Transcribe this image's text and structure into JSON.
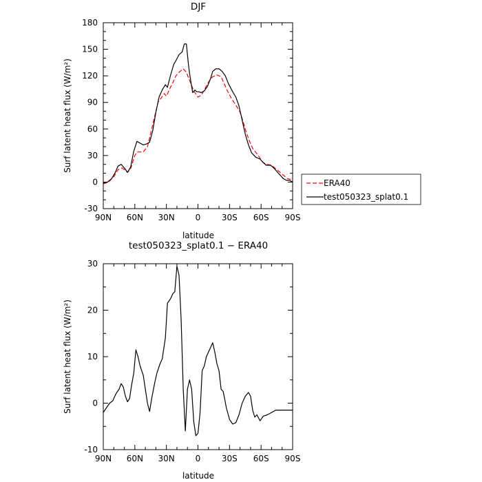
{
  "chart_data": [
    {
      "type": "line",
      "title": "DJF",
      "xlabel": "latitude",
      "ylabel": "Surf latent heat flux (W/m²)",
      "ylim": [
        -30,
        180
      ],
      "xlim": [
        90,
        -90
      ],
      "xticks": [
        90,
        60,
        30,
        0,
        -30,
        -60,
        -90
      ],
      "xtick_labels": [
        "90N",
        "60N",
        "30N",
        "0",
        "30S",
        "60S",
        "90S"
      ],
      "yticks": [
        -30,
        0,
        30,
        60,
        90,
        120,
        150,
        180
      ],
      "ytick_labels": [
        "-30",
        "0",
        "30",
        "60",
        "90",
        "120",
        "150",
        "180"
      ],
      "grid": false,
      "legend_position": "right",
      "series": [
        {
          "name": "ERA40",
          "color": "#ff0000",
          "dash": "dashed",
          "points": [
            [
              90,
              -2
            ],
            [
              85,
              0
            ],
            [
              80,
              6
            ],
            [
              76,
              14
            ],
            [
              72,
              16
            ],
            [
              70,
              14
            ],
            [
              67,
              11
            ],
            [
              64,
              15
            ],
            [
              60,
              30
            ],
            [
              58,
              34
            ],
            [
              55,
              34
            ],
            [
              52,
              34
            ],
            [
              48,
              40
            ],
            [
              45,
              55
            ],
            [
              41,
              75
            ],
            [
              38,
              90
            ],
            [
              35,
              95
            ],
            [
              32,
              100
            ],
            [
              30,
              97
            ],
            [
              27,
              105
            ],
            [
              24,
              112
            ],
            [
              21,
              120
            ],
            [
              18,
              124
            ],
            [
              14,
              128
            ],
            [
              11,
              124
            ],
            [
              8,
              115
            ],
            [
              4,
              103
            ],
            [
              0,
              96
            ],
            [
              -3,
              98
            ],
            [
              -6,
              104
            ],
            [
              -10,
              113
            ],
            [
              -14,
              119
            ],
            [
              -18,
              121
            ],
            [
              -22,
              119
            ],
            [
              -25,
              111
            ],
            [
              -28,
              103
            ],
            [
              -32,
              94
            ],
            [
              -36,
              87
            ],
            [
              -40,
              79
            ],
            [
              -43,
              68
            ],
            [
              -46,
              56
            ],
            [
              -49,
              46
            ],
            [
              -52,
              38
            ],
            [
              -56,
              32
            ],
            [
              -59,
              27
            ],
            [
              -62,
              22
            ],
            [
              -66,
              20
            ],
            [
              -70,
              19
            ],
            [
              -74,
              15
            ],
            [
              -78,
              11
            ],
            [
              -82,
              7
            ],
            [
              -85,
              4
            ],
            [
              -88,
              3
            ],
            [
              -90,
              1
            ]
          ]
        },
        {
          "name": "test050323_splat0.1",
          "color": "#000000",
          "dash": "solid",
          "points": [
            [
              90,
              -1
            ],
            [
              86,
              0
            ],
            [
              82,
              4
            ],
            [
              79,
              10
            ],
            [
              76,
              18
            ],
            [
              73,
              20
            ],
            [
              70,
              16
            ],
            [
              67,
              11
            ],
            [
              64,
              17
            ],
            [
              61,
              35
            ],
            [
              58,
              46
            ],
            [
              55,
              44
            ],
            [
              52,
              42
            ],
            [
              49,
              43
            ],
            [
              46,
              45
            ],
            [
              43,
              58
            ],
            [
              40,
              79
            ],
            [
              37,
              96
            ],
            [
              34,
              104
            ],
            [
              31,
              110
            ],
            [
              29,
              107
            ],
            [
              26,
              121
            ],
            [
              23,
              133
            ],
            [
              21,
              137
            ],
            [
              18,
              144
            ],
            [
              15,
              147
            ],
            [
              13,
              156
            ],
            [
              11,
              156
            ],
            [
              9,
              132
            ],
            [
              7,
              115
            ],
            [
              5,
              101
            ],
            [
              3,
              104
            ],
            [
              1,
              102
            ],
            [
              -1,
              102
            ],
            [
              -3,
              101
            ],
            [
              -6,
              103
            ],
            [
              -9,
              108
            ],
            [
              -12,
              117
            ],
            [
              -14,
              125
            ],
            [
              -17,
              128
            ],
            [
              -20,
              128
            ],
            [
              -23,
              125
            ],
            [
              -26,
              120
            ],
            [
              -29,
              111
            ],
            [
              -33,
              102
            ],
            [
              -36,
              96
            ],
            [
              -39,
              86
            ],
            [
              -42,
              70
            ],
            [
              -45,
              54
            ],
            [
              -48,
              42
            ],
            [
              -51,
              33
            ],
            [
              -55,
              28
            ],
            [
              -59,
              26
            ],
            [
              -62,
              22
            ],
            [
              -65,
              19
            ],
            [
              -69,
              19
            ],
            [
              -72,
              16
            ],
            [
              -75,
              12
            ],
            [
              -78,
              8
            ],
            [
              -81,
              4
            ],
            [
              -84,
              2
            ],
            [
              -87,
              2
            ],
            [
              -90,
              0
            ]
          ]
        }
      ],
      "legend": [
        "ERA40",
        "test050323_splat0.1"
      ]
    },
    {
      "type": "line",
      "title": "test050323_splat0.1 − ERA40",
      "xlabel": "latitude",
      "ylabel": "Surf latent heat flux (W/m²)",
      "ylim": [
        -10,
        30
      ],
      "xlim": [
        90,
        -90
      ],
      "xticks": [
        90,
        60,
        30,
        0,
        -30,
        -60,
        -90
      ],
      "xtick_labels": [
        "90N",
        "60N",
        "30N",
        "0",
        "30S",
        "60S",
        "90S"
      ],
      "yticks": [
        -10,
        0,
        10,
        20,
        30
      ],
      "ytick_labels": [
        "-10",
        "0",
        "10",
        "20",
        "30"
      ],
      "grid": false,
      "series": [
        {
          "color": "#000000",
          "dash": "solid",
          "points": [
            [
              90,
              -2
            ],
            [
              87,
              -1
            ],
            [
              84,
              0
            ],
            [
              81,
              0.5
            ],
            [
              78,
              2
            ],
            [
              75,
              3
            ],
            [
              73,
              4.2
            ],
            [
              71,
              3.5
            ],
            [
              69,
              1.5
            ],
            [
              67,
              0.3
            ],
            [
              65,
              1
            ],
            [
              63,
              4
            ],
            [
              61,
              6.5
            ],
            [
              59,
              11.5
            ],
            [
              57,
              10
            ],
            [
              55,
              8
            ],
            [
              52,
              6
            ],
            [
              50,
              3
            ],
            [
              48,
              0
            ],
            [
              46,
              -1.8
            ],
            [
              44,
              1
            ],
            [
              41,
              4.5
            ],
            [
              39,
              6.5
            ],
            [
              36,
              8.5
            ],
            [
              34,
              9.5
            ],
            [
              31,
              14
            ],
            [
              29,
              21.5
            ],
            [
              26,
              22.5
            ],
            [
              24,
              23.5
            ],
            [
              22,
              24
            ],
            [
              20,
              29.5
            ],
            [
              18,
              27.5
            ],
            [
              16,
              18
            ],
            [
              14,
              3
            ],
            [
              12,
              -6
            ],
            [
              10,
              3
            ],
            [
              8,
              5
            ],
            [
              6,
              3
            ],
            [
              4,
              -4
            ],
            [
              2,
              -7
            ],
            [
              0,
              -6.5
            ],
            [
              -2,
              -2
            ],
            [
              -4,
              7
            ],
            [
              -6,
              8
            ],
            [
              -8,
              10
            ],
            [
              -10,
              11
            ],
            [
              -12,
              12
            ],
            [
              -14,
              13
            ],
            [
              -16,
              11
            ],
            [
              -18,
              8.5
            ],
            [
              -20,
              7
            ],
            [
              -22,
              3
            ],
            [
              -24,
              2.5
            ],
            [
              -27,
              -1
            ],
            [
              -30,
              -3.5
            ],
            [
              -33,
              -4.5
            ],
            [
              -36,
              -4.2
            ],
            [
              -39,
              -2.5
            ],
            [
              -42,
              0
            ],
            [
              -45,
              1.5
            ],
            [
              -48,
              2.3
            ],
            [
              -50,
              1.5
            ],
            [
              -52,
              -1.5
            ],
            [
              -54,
              -3
            ],
            [
              -56,
              -2.5
            ],
            [
              -59,
              -3.8
            ],
            [
              -62,
              -2.8
            ],
            [
              -66,
              -2.5
            ],
            [
              -70,
              -2
            ],
            [
              -74,
              -1.5
            ],
            [
              -78,
              -1.5
            ],
            [
              -82,
              -1.5
            ],
            [
              -86,
              -1.5
            ],
            [
              -90,
              -1.5
            ]
          ]
        }
      ]
    }
  ]
}
